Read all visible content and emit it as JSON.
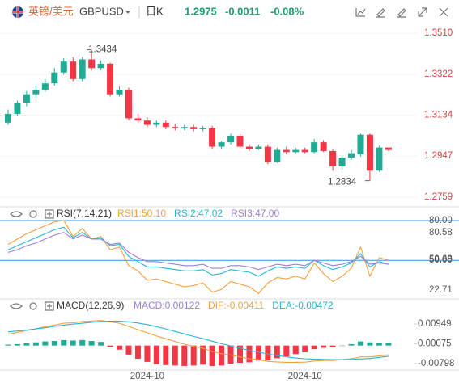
{
  "header": {
    "name": "英镑/美元",
    "symbol": "GBPUSD",
    "period": "日K",
    "price": "1.2975",
    "change": "-0.0011",
    "change_pct": "-0.08%"
  },
  "chart_data": [
    {
      "type": "candlestick",
      "categories": [
        null,
        null,
        null,
        null,
        null,
        null,
        null,
        null,
        null,
        null,
        null,
        null,
        null,
        null,
        null,
        "2024-10",
        null,
        null,
        null,
        null,
        null,
        null,
        null,
        null,
        null,
        null,
        null,
        null,
        null,
        null,
        null,
        null,
        "2024-10",
        null,
        null,
        null,
        null,
        null,
        null,
        null,
        null,
        null
      ],
      "open": [
        1.31,
        1.314,
        1.319,
        1.323,
        1.325,
        1.328,
        1.333,
        1.338,
        1.33,
        1.339,
        1.335,
        1.337,
        1.323,
        1.325,
        1.312,
        1.311,
        1.309,
        1.31,
        1.308,
        1.3075,
        1.308,
        1.307,
        1.3075,
        1.299,
        1.301,
        1.304,
        1.299,
        1.298,
        1.299,
        1.292,
        1.2975,
        1.2965,
        1.2975,
        1.2965,
        1.301,
        1.297,
        1.29,
        1.294,
        1.2955,
        1.3045,
        1.288,
        1.2986
      ],
      "high": [
        1.316,
        1.32,
        1.3245,
        1.327,
        1.33,
        1.335,
        1.3395,
        1.34,
        1.34,
        1.3434,
        1.3385,
        1.3375,
        1.3265,
        1.326,
        1.314,
        1.3125,
        1.311,
        1.311,
        1.3095,
        1.309,
        1.309,
        1.3085,
        1.3085,
        1.3015,
        1.305,
        1.305,
        1.3,
        1.3,
        1.3,
        1.2985,
        1.299,
        1.2985,
        1.2985,
        1.3025,
        1.302,
        1.298,
        1.295,
        1.2975,
        1.305,
        1.305,
        1.2995,
        1.2985
      ],
      "low": [
        1.309,
        1.313,
        1.3175,
        1.3215,
        1.324,
        1.327,
        1.332,
        1.329,
        1.329,
        1.334,
        1.334,
        1.322,
        1.322,
        1.311,
        1.31,
        1.308,
        1.308,
        1.307,
        1.3065,
        1.3065,
        1.306,
        1.306,
        1.298,
        1.298,
        1.3,
        1.2985,
        1.297,
        1.2975,
        1.291,
        1.2915,
        1.2955,
        1.296,
        1.296,
        1.296,
        1.2965,
        1.288,
        1.2885,
        1.293,
        1.2945,
        1.2834,
        1.2875,
        1.297
      ],
      "close": [
        1.314,
        1.319,
        1.323,
        1.325,
        1.328,
        1.333,
        1.338,
        1.33,
        1.339,
        1.335,
        1.337,
        1.323,
        1.325,
        1.312,
        1.311,
        1.309,
        1.31,
        1.308,
        1.3075,
        1.308,
        1.307,
        1.3075,
        1.299,
        1.301,
        1.304,
        1.299,
        1.298,
        1.299,
        1.292,
        1.2975,
        1.2965,
        1.2975,
        1.2965,
        1.301,
        1.297,
        1.29,
        1.294,
        1.296,
        1.3045,
        1.288,
        1.2986,
        1.2975
      ],
      "up_color": "#22ab94",
      "down_color": "#f23645",
      "ylim": [
        1.2718,
        1.3551
      ],
      "yticks": [
        {
          "value": 1.351,
          "label": "1.3510"
        },
        1.3322,
        1.3134,
        1.2947,
        1.2759
      ]
    },
    {
      "type": "line",
      "title": "RSI(7,14,21)",
      "series": [
        {
          "name": "RSI1:50.10",
          "color": "#f5a040",
          "values": [
            62,
            66,
            70,
            73,
            76,
            79,
            80,
            68,
            74,
            66,
            68,
            58,
            60,
            46,
            42,
            35,
            36,
            34,
            32,
            30,
            31,
            33,
            26,
            28,
            34,
            32,
            30,
            25,
            33,
            37,
            36,
            38,
            36,
            48,
            40,
            34,
            38,
            44,
            60,
            38,
            52,
            50.1
          ]
        },
        {
          "name": "RSI2:47.02",
          "color": "#26b6d4",
          "values": [
            58,
            61,
            64,
            67,
            70,
            73,
            75,
            67,
            71,
            66,
            67,
            61,
            62,
            53,
            49,
            45,
            45,
            44,
            43,
            42,
            42,
            43,
            39,
            40,
            43,
            42,
            41,
            38,
            42,
            45,
            44,
            45,
            44,
            50,
            46,
            43,
            45,
            48,
            55,
            45,
            49,
            47.02
          ]
        },
        {
          "name": "RSI3:47.00",
          "color": "#9c7fd6",
          "values": [
            56,
            58,
            61,
            63,
            66,
            69,
            71,
            66,
            69,
            66,
            66,
            62,
            63,
            56,
            52,
            49,
            49,
            48,
            47,
            46,
            46,
            47,
            44,
            44,
            46,
            46,
            45,
            43,
            45,
            47,
            46,
            47,
            46,
            50,
            48,
            46,
            47,
            49,
            53,
            47,
            48,
            47.0
          ]
        }
      ],
      "ylim": [
        22.71,
        80.58
      ],
      "yticks": [
        {
          "value": 80,
          "label": "80.00"
        },
        {
          "value": 50,
          "label": "50.00"
        },
        50.68
      ]
    },
    {
      "type": "macd",
      "title": "MACD(12,26,9)",
      "series": [
        {
          "name": "MACD:0.00122",
          "color": "#9c7fd6",
          "up_color": "#22ab94",
          "down_color": "#f23645",
          "values": [
            0.0004,
            0.0006,
            0.001,
            0.0014,
            0.0018,
            0.002,
            0.0024,
            0.0022,
            0.0024,
            0.002,
            0.0016,
            -0.0006,
            -0.0018,
            -0.004,
            -0.0058,
            -0.0072,
            -0.0082,
            -0.0086,
            -0.0088,
            -0.009,
            -0.0088,
            -0.0084,
            -0.009,
            -0.0088,
            -0.008,
            -0.0076,
            -0.0074,
            -0.0066,
            -0.0066,
            -0.0056,
            -0.0048,
            -0.0038,
            -0.003,
            -0.0016,
            -0.001,
            -0.0008,
            0.0,
            0.0006,
            0.0018,
            0.0014,
            0.0012,
            0.00122
          ]
        },
        {
          "name": "DIF:-0.00411",
          "color": "#f5a040",
          "values": [
            0.005,
            0.0058,
            0.0066,
            0.0074,
            0.0082,
            0.009,
            0.0098,
            0.01,
            0.0106,
            0.0108,
            0.011,
            0.0104,
            0.0098,
            0.0084,
            0.007,
            0.0056,
            0.0042,
            0.003,
            0.0018,
            0.0006,
            -0.0004,
            -0.0012,
            -0.0026,
            -0.0036,
            -0.0042,
            -0.005,
            -0.0058,
            -0.0062,
            -0.007,
            -0.0072,
            -0.0074,
            -0.0074,
            -0.0073,
            -0.0068,
            -0.0066,
            -0.0066,
            -0.0062,
            -0.0058,
            -0.005,
            -0.005,
            -0.0046,
            -0.00411
          ]
        },
        {
          "name": "DEA:-0.00472",
          "color": "#26b6d4",
          "values": [
            0.006,
            0.0064,
            0.0068,
            0.0073,
            0.0078,
            0.0084,
            0.009,
            0.0094,
            0.0098,
            0.0102,
            0.0106,
            0.0107,
            0.0107,
            0.0104,
            0.0099,
            0.0092,
            0.0083,
            0.0073,
            0.0062,
            0.0051,
            0.004,
            0.003,
            0.0019,
            0.0008,
            -0.0002,
            -0.0012,
            -0.0021,
            -0.0029,
            -0.0037,
            -0.0044,
            -0.005,
            -0.0055,
            -0.0058,
            -0.006,
            -0.0061,
            -0.0062,
            -0.0062,
            -0.0061,
            -0.0059,
            -0.0057,
            -0.0052,
            -0.00472
          ]
        }
      ],
      "ylim": [
        -0.0108,
        0.0134
      ],
      "yticks": [
        0.00949,
        0.00075,
        -0.00798
      ]
    }
  ]
}
